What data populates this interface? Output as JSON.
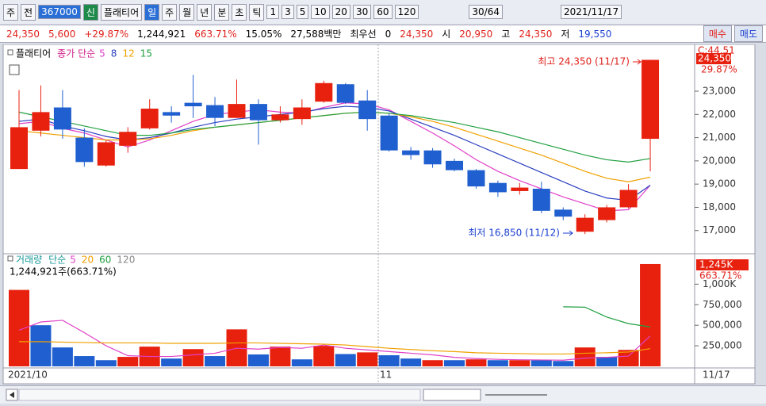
{
  "toolbar": {
    "items": [
      "주",
      "전",
      "367000",
      "신",
      "플래티어",
      "일",
      "주",
      "월",
      "년",
      "분",
      "초",
      "틱",
      "1",
      "3",
      "5",
      "10",
      "20",
      "30",
      "60",
      "120"
    ],
    "count": "30/64",
    "date": "2021/11/17"
  },
  "quote_bar": {
    "items": [
      "24,350",
      "5,600",
      "+29.87%",
      "1,244,921",
      "663.71%",
      "15.05%",
      "27,588백만",
      "최우선",
      "0",
      "24,350",
      "시",
      "20,950",
      "고",
      "24,350",
      "저",
      "19,550"
    ],
    "buttons": [
      "매수",
      "매도"
    ]
  },
  "chart_data": [
    {
      "type": "candlestick",
      "title": "플래티어",
      "legend_label": "종가 단순",
      "corner_label": "C:44.51",
      "last_price_label": "24,350",
      "change_label": "29.87%",
      "annotations": [
        "최고 24,350 (11/17)",
        "최저 16,850 (11/12)"
      ],
      "up_color": "#e8210f",
      "down_color": "#1f5fcf",
      "open": [
        19650,
        21300,
        22300,
        21000,
        19800,
        20650,
        21400,
        22100,
        22500,
        22400,
        21850,
        22450,
        21750,
        21800,
        22550,
        23300,
        22600,
        21950,
        20450,
        20450,
        20000,
        19600,
        19050,
        18700,
        18800,
        17900,
        16950,
        17450,
        18000,
        20950
      ],
      "high": [
        23050,
        23250,
        23050,
        21400,
        20900,
        21450,
        22650,
        22350,
        23700,
        22750,
        23500,
        22650,
        22350,
        22650,
        23450,
        23350,
        23050,
        22050,
        20600,
        20550,
        20100,
        19650,
        19150,
        19050,
        19100,
        18000,
        17700,
        18100,
        19000,
        24350
      ],
      "low": [
        19650,
        21050,
        20950,
        19750,
        19750,
        20350,
        21350,
        21650,
        21850,
        21500,
        21850,
        20700,
        21650,
        21550,
        22500,
        22450,
        21300,
        20400,
        20050,
        19700,
        19550,
        18800,
        18450,
        18550,
        17750,
        17450,
        16850,
        17350,
        17950,
        19550
      ],
      "close": [
        21450,
        22100,
        21350,
        19950,
        20800,
        21250,
        22250,
        21950,
        22350,
        21850,
        22450,
        21750,
        22000,
        22300,
        23350,
        22500,
        21800,
        20450,
        20250,
        19850,
        19600,
        18900,
        18650,
        18850,
        17850,
        17600,
        17550,
        18000,
        18750,
        24350
      ],
      "series": [
        {
          "name": "5",
          "color": "#e040c8",
          "values": [
            21600,
            21700,
            21400,
            21200,
            20900,
            20600,
            20900,
            21300,
            21700,
            22000,
            22100,
            22200,
            22100,
            22050,
            22300,
            22500,
            22450,
            22200,
            21700,
            21200,
            20650,
            20050,
            19550,
            19150,
            18800,
            18450,
            18150,
            17850,
            17900,
            18950
          ]
        },
        {
          "name": "8",
          "color": "#2a3fc0",
          "values": [
            21700,
            21800,
            21500,
            21300,
            21050,
            20900,
            21000,
            21200,
            21450,
            21650,
            21800,
            21900,
            22000,
            22100,
            22250,
            22350,
            22300,
            22150,
            21800,
            21450,
            21100,
            20700,
            20300,
            19900,
            19500,
            19100,
            18700,
            18400,
            18300,
            18950
          ]
        },
        {
          "name": "12",
          "color": "#f0a000",
          "values": [
            21300,
            21200,
            21100,
            21000,
            20900,
            20900,
            20950,
            21100,
            21300,
            21450,
            21550,
            21650,
            21750,
            21850,
            21950,
            22050,
            22100,
            22050,
            21900,
            21700,
            21450,
            21150,
            20850,
            20550,
            20250,
            19900,
            19550,
            19250,
            19100,
            19300
          ]
        },
        {
          "name": "15",
          "color": "#20a040",
          "values": [
            22100,
            21900,
            21700,
            21500,
            21300,
            21100,
            21100,
            21200,
            21350,
            21450,
            21550,
            21650,
            21750,
            21850,
            21950,
            22050,
            22100,
            22050,
            21950,
            21800,
            21650,
            21450,
            21250,
            21000,
            20750,
            20500,
            20250,
            20050,
            19950,
            20100
          ]
        }
      ],
      "ylim": [
        16240,
        24810
      ],
      "yticks": [
        {
          "value": 17000,
          "label": "17,000"
        },
        {
          "value": 18000,
          "label": "18,000"
        },
        {
          "value": 19000,
          "label": "19,000"
        },
        {
          "value": 20000,
          "label": "20,000"
        },
        {
          "value": 21000,
          "label": "21,000"
        },
        {
          "value": 22000,
          "label": "22,000"
        },
        {
          "value": 23000,
          "label": "23,000"
        }
      ]
    },
    {
      "type": "bar",
      "title": "거래량",
      "legend_label": "단순",
      "summary": "1,244,921주(663.71%)",
      "last_value_label": "1,245K",
      "ratio_label": "663.71%",
      "last_date_label": "11/17",
      "categories": [
        "2021/10",
        null,
        null,
        null,
        null,
        null,
        null,
        null,
        null,
        null,
        null,
        null,
        null,
        null,
        null,
        null,
        null,
        "11",
        null,
        null,
        null,
        null,
        null,
        null,
        null,
        null,
        null,
        null,
        null,
        null
      ],
      "values": [
        930000,
        500000,
        230000,
        125000,
        75000,
        115000,
        240000,
        95000,
        210000,
        125000,
        450000,
        145000,
        240000,
        85000,
        250000,
        150000,
        170000,
        135000,
        95000,
        75000,
        75000,
        85000,
        75000,
        75000,
        75000,
        65000,
        230000,
        115000,
        200000,
        1244921
      ],
      "colors": [
        "#e8210f",
        "#1f5fcf",
        "#1f5fcf",
        "#1f5fcf",
        "#1f5fcf",
        "#e8210f",
        "#e8210f",
        "#1f5fcf",
        "#e8210f",
        "#1f5fcf",
        "#e8210f",
        "#1f5fcf",
        "#e8210f",
        "#1f5fcf",
        "#e8210f",
        "#1f5fcf",
        "#e8210f",
        "#1f5fcf",
        "#1f5fcf",
        "#e8210f",
        "#1f5fcf",
        "#e8210f",
        "#1f5fcf",
        "#e8210f",
        "#1f5fcf",
        "#1f5fcf",
        "#e8210f",
        "#1f5fcf",
        "#e8210f",
        "#e8210f"
      ],
      "series": [
        {
          "name": "5",
          "color": "#e040c8",
          "values": [
            440000,
            540000,
            560000,
            410000,
            250000,
            130000,
            120000,
            120000,
            140000,
            160000,
            220000,
            210000,
            230000,
            220000,
            260000,
            220000,
            200000,
            180000,
            160000,
            140000,
            110000,
            95000,
            85000,
            80000,
            78000,
            75000,
            100000,
            110000,
            125000,
            370000
          ]
        },
        {
          "name": "20",
          "color": "#f0a000",
          "values": [
            300000,
            300000,
            295000,
            290000,
            285000,
            285000,
            285000,
            280000,
            280000,
            280000,
            285000,
            285000,
            280000,
            275000,
            270000,
            260000,
            240000,
            220000,
            205000,
            190000,
            180000,
            165000,
            160000,
            155000,
            150000,
            150000,
            160000,
            165000,
            175000,
            215000
          ]
        },
        {
          "name": "60",
          "color": "#20a040",
          "values": [
            null,
            null,
            null,
            null,
            null,
            null,
            null,
            null,
            null,
            null,
            null,
            null,
            null,
            null,
            null,
            null,
            null,
            null,
            null,
            null,
            null,
            null,
            null,
            null,
            null,
            725000,
            720000,
            600000,
            520000,
            480000
          ]
        },
        {
          "name": "120",
          "color": "#888888",
          "values": [
            null,
            null,
            null,
            null,
            null,
            null,
            null,
            null,
            null,
            null,
            null,
            null,
            null,
            null,
            null,
            null,
            null,
            null,
            null,
            null,
            null,
            null,
            null,
            null,
            null,
            null,
            null,
            null,
            null,
            null
          ]
        }
      ],
      "ylim": [
        0,
        1370000
      ],
      "yticks": [
        {
          "value": 250000,
          "label": "250,000"
        },
        {
          "value": 500000,
          "label": "500,000"
        },
        {
          "value": 750000,
          "label": "750,000"
        },
        {
          "value": 1000000,
          "label": "1,000K"
        }
      ]
    }
  ]
}
